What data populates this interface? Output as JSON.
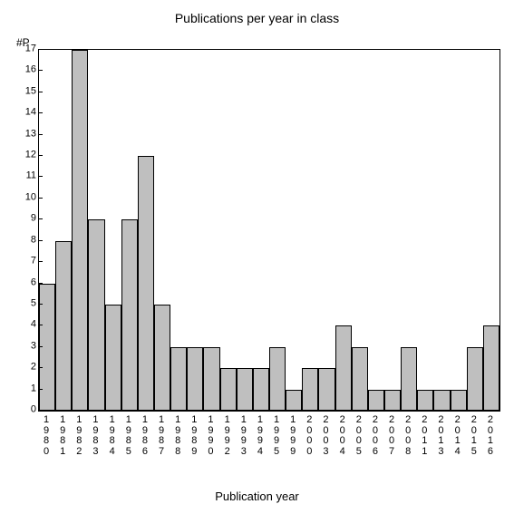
{
  "chart": {
    "type": "bar",
    "title": "Publications per year in class",
    "ylabel": "#P",
    "xlabel": "Publication year",
    "title_fontsize": 14,
    "label_fontsize": 13,
    "tick_fontsize": 11,
    "background_color": "#ffffff",
    "bar_color": "#bfbfbf",
    "bar_border_color": "#000000",
    "axis_color": "#000000",
    "ylim": [
      0,
      17
    ],
    "ytick_step": 1,
    "categories": [
      "1980",
      "1981",
      "1982",
      "1983",
      "1984",
      "1985",
      "1986",
      "1987",
      "1988",
      "1989",
      "1990",
      "1992",
      "1993",
      "1994",
      "1995",
      "1999",
      "2000",
      "2003",
      "2004",
      "2005",
      "2006",
      "2007",
      "2008",
      "2011",
      "2013",
      "2014",
      "2015",
      "2016"
    ],
    "values": [
      6,
      8,
      17,
      9,
      5,
      9,
      12,
      5,
      3,
      3,
      3,
      2,
      2,
      2,
      3,
      1,
      2,
      2,
      4,
      3,
      1,
      1,
      3,
      1,
      1,
      1,
      3,
      4
    ],
    "bar_width": 1.0
  }
}
